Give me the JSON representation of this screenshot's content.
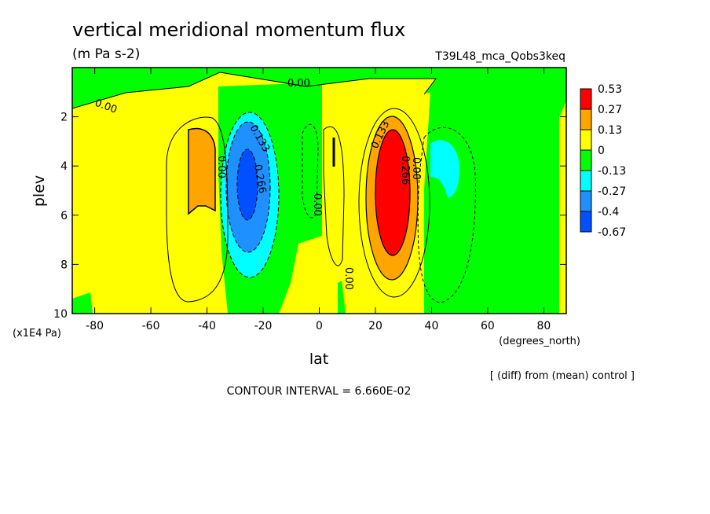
{
  "chart_data": {
    "type": "contour",
    "title": "vertical meridional momentum flux",
    "units": "(m Pa s-2)",
    "run_label": "T39L48_mca_Qobs3keq",
    "xlabel": "lat",
    "xunit": "(degrees_north)",
    "ylabel": "plev",
    "yunit": "(x1E4 Pa)",
    "xlim": [
      -88,
      88
    ],
    "ylim": [
      0,
      10
    ],
    "x_ticks": [
      {
        "value": -80,
        "label": "-80"
      },
      {
        "value": -60,
        "label": "-60"
      },
      {
        "value": -40,
        "label": "-40"
      },
      {
        "value": -20,
        "label": "-20"
      },
      {
        "value": 0,
        "label": "0"
      },
      {
        "value": 20,
        "label": "20"
      },
      {
        "value": 40,
        "label": "40"
      },
      {
        "value": 60,
        "label": "60"
      },
      {
        "value": 80,
        "label": "80"
      }
    ],
    "y_ticks": [
      {
        "value": 2,
        "label": "2"
      },
      {
        "value": 4,
        "label": "4"
      },
      {
        "value": 6,
        "label": "6"
      },
      {
        "value": 8,
        "label": "8"
      },
      {
        "value": 10,
        "label": "10"
      }
    ],
    "colorbar": [
      {
        "label": "0.53",
        "color": "#ff0000"
      },
      {
        "label": "0.27",
        "color": "#ffa500"
      },
      {
        "label": "0.13",
        "color": "#ffff00"
      },
      {
        "label": "0",
        "color": "#00ff00"
      },
      {
        "label": "-0.13",
        "color": "#00ffff"
      },
      {
        "label": "-0.27",
        "color": "#1e90ff"
      },
      {
        "label": "-0.4",
        "color": "#0050ff"
      },
      {
        "label": "-0.67",
        "color": null
      }
    ],
    "contour_labels": [
      "0.00",
      "0.00",
      "0.133",
      "0.266",
      "0.00",
      "0.00",
      "0.133",
      "0.266",
      "0.00",
      "0.00"
    ],
    "contour_interval": "CONTOUR INTERVAL = 6.660E-02",
    "note": "[ (diff) from (mean) control ]"
  }
}
